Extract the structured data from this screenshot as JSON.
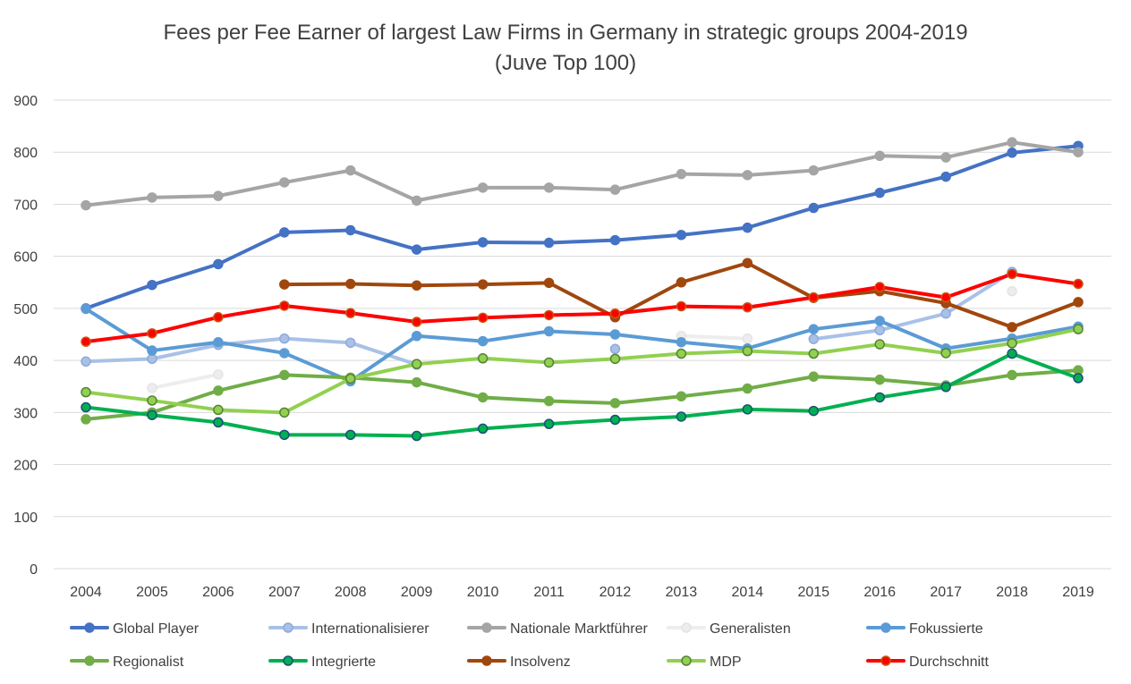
{
  "chart_data": {
    "type": "line",
    "title": "Fees per Fee Earner of largest Law Firms in Germany in strategic groups 2004-2019",
    "subtitle": "(Juve Top 100)",
    "xlabel": "",
    "ylabel": "",
    "categories": [
      "2004",
      "2005",
      "2006",
      "2007",
      "2008",
      "2009",
      "2010",
      "2011",
      "2012",
      "2013",
      "2014",
      "2015",
      "2016",
      "2017",
      "2018",
      "2019"
    ],
    "ylim": [
      0,
      900
    ],
    "yticks": [
      "0",
      "100",
      "200",
      "300",
      "400",
      "500",
      "600",
      "700",
      "800",
      "900"
    ],
    "grid": true,
    "legend_position": "bottom",
    "series": [
      {
        "name": "Global Player",
        "color": "#4472C4",
        "marker_edge": "#4472C4",
        "values": [
          500,
          545,
          585,
          646,
          650,
          613,
          627,
          626,
          631,
          641,
          655,
          693,
          722,
          753,
          799,
          812
        ]
      },
      {
        "name": "Internationalisierer",
        "color": "#A9C1E6",
        "marker_edge": "#8FAADC",
        "values": [
          398,
          403,
          430,
          442,
          434,
          392,
          null,
          null,
          422,
          null,
          null,
          441,
          458,
          490,
          570,
          null
        ]
      },
      {
        "name": "Nationale Marktführer",
        "color": "#A5A5A5",
        "marker_edge": "#A5A5A5",
        "values": [
          698,
          713,
          716,
          742,
          765,
          707,
          732,
          732,
          728,
          758,
          756,
          765,
          793,
          790,
          819,
          800
        ]
      },
      {
        "name": "Generalisten",
        "color": "#EDEDED",
        "marker_edge": "#E4E4E4",
        "values": [
          null,
          347,
          373,
          null,
          null,
          null,
          null,
          null,
          null,
          447,
          442,
          null,
          null,
          null,
          533,
          null
        ]
      },
      {
        "name": "Fokussierte",
        "color": "#5B9BD5",
        "marker_edge": "#5B9BD5",
        "values": [
          499,
          419,
          435,
          414,
          360,
          447,
          437,
          456,
          450,
          435,
          423,
          460,
          476,
          423,
          442,
          465
        ]
      },
      {
        "name": "Regionalist",
        "color": "#70AD47",
        "marker_edge": "#70AD47",
        "values": [
          287,
          300,
          342,
          372,
          367,
          358,
          329,
          322,
          318,
          331,
          346,
          369,
          363,
          352,
          372,
          381
        ]
      },
      {
        "name": "Integrierte",
        "color": "#00B050",
        "marker_edge": "#1F4E79",
        "values": [
          310,
          295,
          281,
          257,
          257,
          255,
          269,
          278,
          286,
          292,
          306,
          303,
          329,
          349,
          413,
          366
        ]
      },
      {
        "name": "Insolvenz",
        "color": "#A0470E",
        "marker_edge": "#A0470E",
        "values": [
          null,
          null,
          null,
          546,
          547,
          544,
          546,
          549,
          483,
          550,
          587,
          520,
          533,
          510,
          464,
          512
        ]
      },
      {
        "name": "MDP",
        "color": "#92D050",
        "marker_edge": "#548235",
        "values": [
          339,
          323,
          305,
          300,
          365,
          393,
          404,
          396,
          403,
          413,
          418,
          413,
          431,
          414,
          433,
          460
        ]
      },
      {
        "name": "Durchschnitt",
        "color": "#FF0000",
        "marker_edge": "#C55A11",
        "values": [
          436,
          452,
          483,
          505,
          491,
          474,
          482,
          487,
          490,
          504,
          502,
          521,
          541,
          521,
          566,
          547
        ]
      }
    ]
  }
}
